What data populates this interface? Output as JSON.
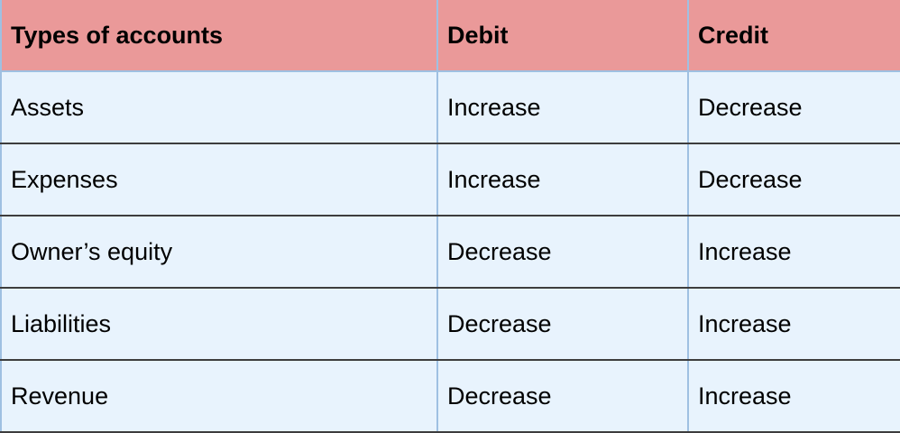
{
  "table": {
    "headers": [
      "Types of accounts",
      "Debit",
      "Credit"
    ],
    "rows": [
      [
        "Assets",
        "Increase",
        "Decrease"
      ],
      [
        "Expenses",
        "Increase",
        "Decrease"
      ],
      [
        "Owner’s equity",
        "Decrease",
        "Increase"
      ],
      [
        "Liabilities",
        "Decrease",
        "Increase"
      ],
      [
        "Revenue",
        "Decrease",
        "Increase"
      ]
    ]
  },
  "colors": {
    "header_bg": "#ea9999",
    "cell_bg": "#e8f3fd",
    "grid_blue": "#9fc0e2",
    "row_rule": "#3d3d3d"
  }
}
